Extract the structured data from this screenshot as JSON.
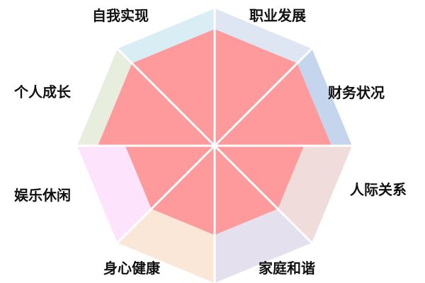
{
  "chart_data": {
    "type": "radar",
    "title": "",
    "categories": [
      "职业发展",
      "财务状况",
      "人际关系",
      "家庭和谐",
      "身心健康",
      "娱乐休闲",
      "个人成长",
      "自我实现"
    ],
    "max": 10,
    "series": [
      {
        "values": [
          8.5,
          8.5,
          6.5,
          6.5,
          6.5,
          6.5,
          8.5,
          8.5
        ],
        "color": "#ff9a9c"
      }
    ],
    "segment_colors": [
      "#dee5f3",
      "#c5d5ee",
      "#f1dcdc",
      "#e4e0ee",
      "#fbe7d7",
      "#fde3fb",
      "#e8eede",
      "#d8eef4"
    ],
    "divider_color": "#ffffff",
    "grid": false,
    "legend": "none"
  }
}
